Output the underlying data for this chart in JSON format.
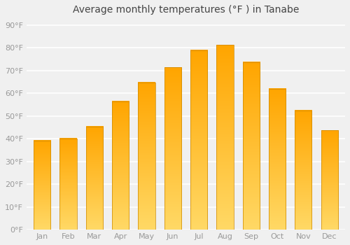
{
  "title": "Average monthly temperatures (°F ) in Tanabe",
  "months": [
    "Jan",
    "Feb",
    "Mar",
    "Apr",
    "May",
    "Jun",
    "Jul",
    "Aug",
    "Sep",
    "Oct",
    "Nov",
    "Dec"
  ],
  "values": [
    39.2,
    40.1,
    45.3,
    56.5,
    64.9,
    71.4,
    79.0,
    81.3,
    73.8,
    62.1,
    52.5,
    43.7
  ],
  "bar_color_light": "#FFD966",
  "bar_color_dark": "#FFA500",
  "bar_edge_color": "#CC8800",
  "background_color": "#f0f0f0",
  "plot_background": "#f0f0f0",
  "grid_color": "#ffffff",
  "ytick_labels": [
    "0°F",
    "10°F",
    "20°F",
    "30°F",
    "40°F",
    "50°F",
    "60°F",
    "70°F",
    "80°F",
    "90°F"
  ],
  "ytick_values": [
    0,
    10,
    20,
    30,
    40,
    50,
    60,
    70,
    80,
    90
  ],
  "ylim": [
    0,
    93
  ],
  "title_fontsize": 10,
  "tick_fontsize": 8,
  "tick_color": "#999999",
  "figsize": [
    5.0,
    3.5
  ],
  "dpi": 100
}
